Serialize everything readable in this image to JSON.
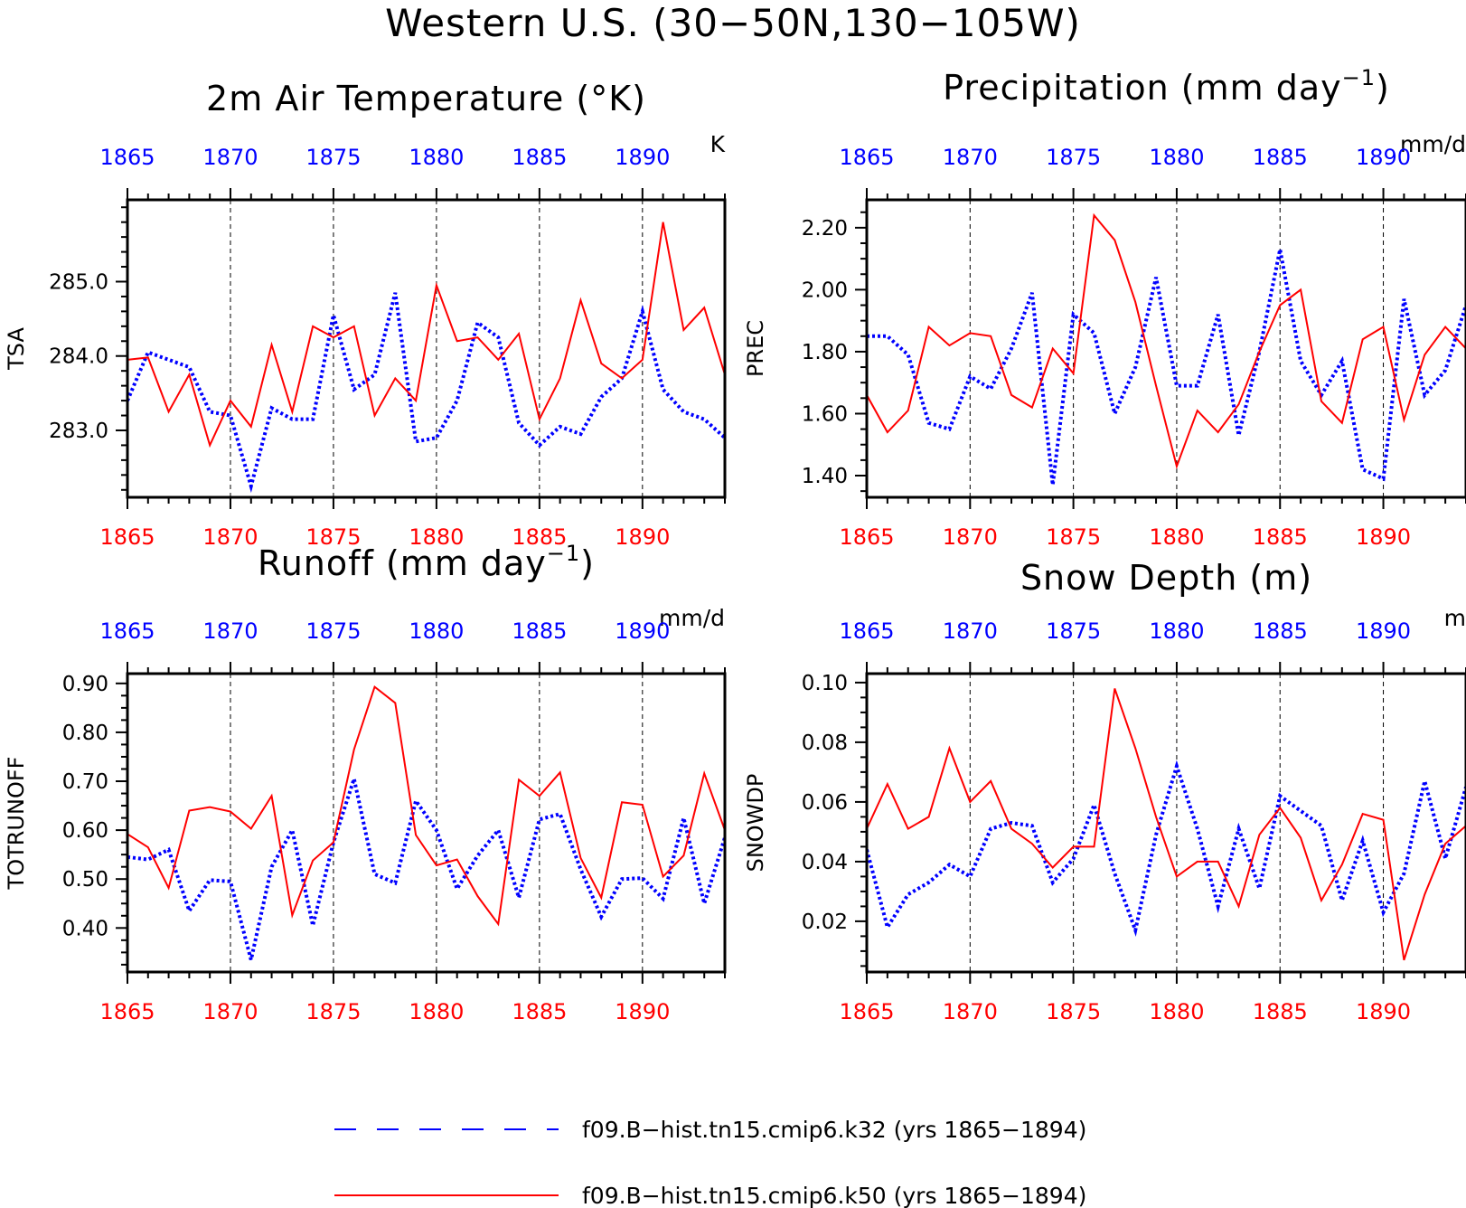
{
  "title": "Western U.S. (30−50N,130−105W)",
  "colors": {
    "bottom_axis": "#ff0000",
    "top_axis": "#0000ff",
    "k32": "#0000ff",
    "k50": "#ff0000"
  },
  "legend": [
    {
      "key": "k32",
      "label": "f09.B−hist.tn15.cmip6.k32 (yrs 1865−1894)",
      "style": "dashed"
    },
    {
      "key": "k50",
      "label": "f09.B−hist.tn15.cmip6.k50 (yrs 1865−1894)",
      "style": "solid"
    }
  ],
  "chart_data": [
    {
      "type": "line",
      "title": "2m Air Temperature (°K)",
      "ylabel": "TSA",
      "units": "K",
      "x": [
        1865,
        1866,
        1867,
        1868,
        1869,
        1870,
        1871,
        1872,
        1873,
        1874,
        1875,
        1876,
        1877,
        1878,
        1879,
        1880,
        1881,
        1882,
        1883,
        1884,
        1885,
        1886,
        1887,
        1888,
        1889,
        1890,
        1891,
        1892,
        1893,
        1894
      ],
      "xlim": [
        1865,
        1894
      ],
      "ylim": [
        282.1,
        286.1
      ],
      "yticks": [
        283.0,
        284.0,
        285.0
      ],
      "ytick_labels": [
        "283.0",
        "284.0",
        "285.0"
      ],
      "minor_ystep": 0.2,
      "xticks": [
        1865,
        1870,
        1875,
        1880,
        1885,
        1890
      ],
      "series": [
        {
          "key": "k32",
          "values": [
            283.4,
            284.05,
            283.95,
            283.85,
            283.25,
            283.2,
            282.25,
            283.3,
            283.15,
            283.15,
            284.55,
            283.55,
            283.75,
            284.85,
            282.85,
            282.9,
            283.4,
            284.45,
            284.25,
            283.1,
            282.8,
            283.05,
            282.95,
            283.45,
            283.7,
            284.6,
            283.55,
            283.25,
            283.15,
            282.9
          ]
        },
        {
          "key": "k50",
          "values": [
            283.95,
            283.98,
            283.25,
            283.75,
            282.8,
            283.4,
            283.05,
            284.15,
            283.25,
            284.4,
            284.25,
            284.4,
            283.2,
            283.7,
            283.4,
            284.95,
            284.2,
            284.25,
            283.95,
            284.3,
            283.15,
            283.7,
            284.75,
            283.9,
            283.7,
            283.95,
            285.8,
            284.35,
            284.65,
            283.75
          ]
        }
      ]
    },
    {
      "type": "line",
      "title": "Precipitation (mm day",
      "title_sup": "−1",
      "title_end": ")",
      "ylabel": "PREC",
      "units": "mm/d",
      "x": [
        1865,
        1866,
        1867,
        1868,
        1869,
        1870,
        1871,
        1872,
        1873,
        1874,
        1875,
        1876,
        1877,
        1878,
        1879,
        1880,
        1881,
        1882,
        1883,
        1884,
        1885,
        1886,
        1887,
        1888,
        1889,
        1890,
        1891,
        1892,
        1893,
        1894
      ],
      "xlim": [
        1865,
        1894
      ],
      "ylim": [
        1.33,
        2.29
      ],
      "yticks": [
        1.4,
        1.6,
        1.8,
        2.0,
        2.2
      ],
      "ytick_labels": [
        "1.40",
        "1.60",
        "1.80",
        "2.00",
        "2.20"
      ],
      "minor_ystep": 0.05,
      "xticks": [
        1865,
        1870,
        1875,
        1880,
        1885,
        1890
      ],
      "series": [
        {
          "key": "k32",
          "values": [
            1.85,
            1.85,
            1.79,
            1.57,
            1.55,
            1.72,
            1.68,
            1.81,
            1.99,
            1.37,
            1.92,
            1.86,
            1.6,
            1.75,
            2.04,
            1.69,
            1.69,
            1.92,
            1.53,
            1.8,
            2.13,
            1.77,
            1.66,
            1.77,
            1.42,
            1.39,
            1.97,
            1.66,
            1.74,
            1.95
          ]
        },
        {
          "key": "k50",
          "values": [
            1.66,
            1.54,
            1.61,
            1.88,
            1.82,
            1.86,
            1.85,
            1.66,
            1.62,
            1.81,
            1.73,
            2.24,
            2.16,
            1.96,
            1.69,
            1.43,
            1.61,
            1.54,
            1.63,
            1.8,
            1.95,
            2.0,
            1.64,
            1.57,
            1.84,
            1.88,
            1.58,
            1.79,
            1.88,
            1.81
          ]
        }
      ]
    },
    {
      "type": "line",
      "title": "Runoff (mm day",
      "title_sup": "−1",
      "title_end": ")",
      "ylabel": "TOTRUNOFF",
      "units": "mm/d",
      "x": [
        1865,
        1866,
        1867,
        1868,
        1869,
        1870,
        1871,
        1872,
        1873,
        1874,
        1875,
        1876,
        1877,
        1878,
        1879,
        1880,
        1881,
        1882,
        1883,
        1884,
        1885,
        1886,
        1887,
        1888,
        1889,
        1890,
        1891,
        1892,
        1893,
        1894
      ],
      "xlim": [
        1865,
        1894
      ],
      "ylim": [
        0.31,
        0.92
      ],
      "yticks": [
        0.4,
        0.5,
        0.6,
        0.7,
        0.8,
        0.9
      ],
      "ytick_labels": [
        "0.40",
        "0.50",
        "0.60",
        "0.70",
        "0.80",
        "0.90"
      ],
      "minor_ystep": 0.025,
      "xticks": [
        1865,
        1870,
        1875,
        1880,
        1885,
        1890
      ],
      "series": [
        {
          "key": "k32",
          "values": [
            0.545,
            0.54,
            0.56,
            0.435,
            0.498,
            0.495,
            0.335,
            0.525,
            0.6,
            0.405,
            0.575,
            0.705,
            0.51,
            0.492,
            0.66,
            0.6,
            0.48,
            0.548,
            0.6,
            0.462,
            0.622,
            0.633,
            0.52,
            0.423,
            0.5,
            0.502,
            0.46,
            0.625,
            0.45,
            0.585
          ]
        },
        {
          "key": "k50",
          "values": [
            0.592,
            0.565,
            0.482,
            0.64,
            0.647,
            0.638,
            0.603,
            0.67,
            0.426,
            0.538,
            0.575,
            0.765,
            0.893,
            0.86,
            0.59,
            0.528,
            0.54,
            0.465,
            0.408,
            0.703,
            0.67,
            0.718,
            0.543,
            0.462,
            0.657,
            0.652,
            0.505,
            0.548,
            0.716,
            0.6
          ]
        }
      ]
    },
    {
      "type": "line",
      "title": "Snow Depth (m)",
      "ylabel": "SNOWDP",
      "units": "m",
      "x": [
        1865,
        1866,
        1867,
        1868,
        1869,
        1870,
        1871,
        1872,
        1873,
        1874,
        1875,
        1876,
        1877,
        1878,
        1879,
        1880,
        1881,
        1882,
        1883,
        1884,
        1885,
        1886,
        1887,
        1888,
        1889,
        1890,
        1891,
        1892,
        1893,
        1894
      ],
      "xlim": [
        1865,
        1894
      ],
      "ylim": [
        0.003,
        0.103
      ],
      "yticks": [
        0.02,
        0.04,
        0.06,
        0.08,
        0.1
      ],
      "ytick_labels": [
        "0.02",
        "0.04",
        "0.06",
        "0.08",
        "0.10"
      ],
      "minor_ystep": 0.005,
      "xticks": [
        1865,
        1870,
        1875,
        1880,
        1885,
        1890
      ],
      "series": [
        {
          "key": "k32",
          "values": [
            0.044,
            0.018,
            0.029,
            0.033,
            0.039,
            0.035,
            0.051,
            0.053,
            0.052,
            0.033,
            0.041,
            0.059,
            0.036,
            0.017,
            0.049,
            0.072,
            0.051,
            0.025,
            0.051,
            0.031,
            0.062,
            0.057,
            0.052,
            0.027,
            0.047,
            0.023,
            0.036,
            0.067,
            0.041,
            0.065
          ]
        },
        {
          "key": "k50",
          "values": [
            0.051,
            0.066,
            0.051,
            0.055,
            0.078,
            0.06,
            0.067,
            0.051,
            0.046,
            0.038,
            0.045,
            0.045,
            0.098,
            0.078,
            0.055,
            0.035,
            0.04,
            0.04,
            0.025,
            0.049,
            0.058,
            0.048,
            0.027,
            0.039,
            0.056,
            0.054,
            0.007,
            0.029,
            0.046,
            0.052
          ]
        }
      ]
    }
  ]
}
